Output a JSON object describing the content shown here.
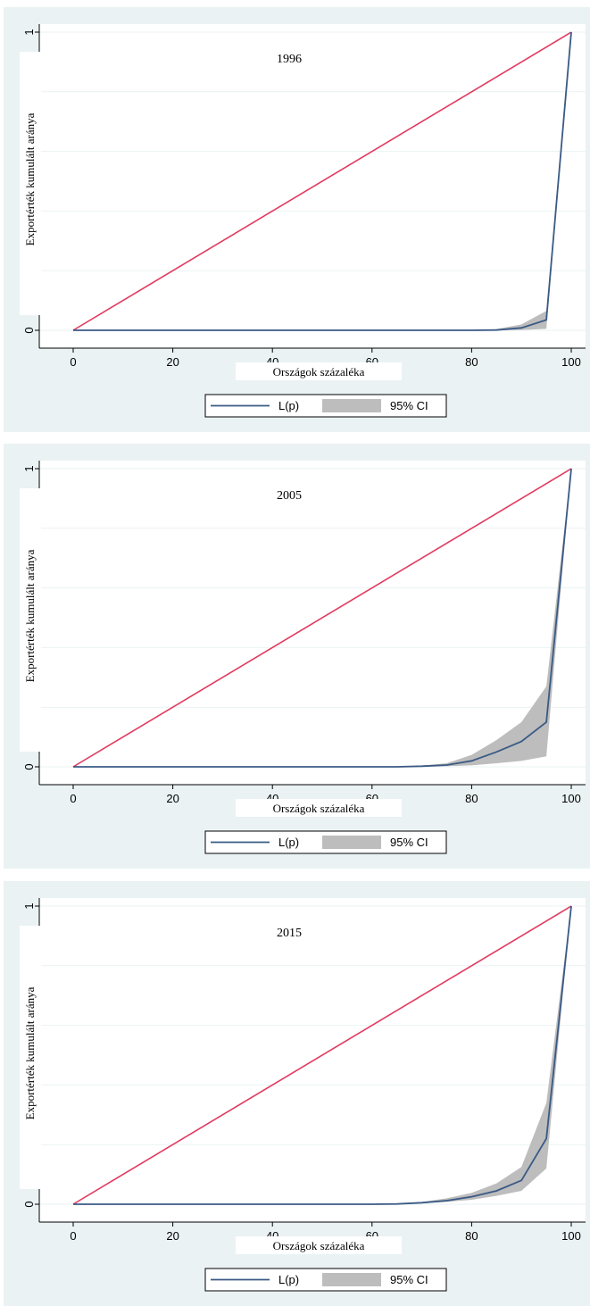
{
  "colors": {
    "panel_bg": "#eaf2f3",
    "plot_bg": "#ffffff",
    "grid": "#eaf2f3",
    "equality_line": "#e23a5f",
    "lorenz_line": "#3a5a85",
    "ci_band": "#bdbdbd",
    "axis": "#000000"
  },
  "legend": {
    "line_label": "L(p)",
    "band_label": "95% CI"
  },
  "chart_data": [
    {
      "type": "line",
      "title": "1996",
      "xlabel": "Országok százaléka",
      "ylabel": "Exportérték kumulált aránya",
      "xlim": [
        0,
        100
      ],
      "ylim": [
        0,
        1
      ],
      "xticks": [
        "0",
        "20",
        "40",
        "60",
        "80",
        "100"
      ],
      "yticks": [
        "0",
        ".2",
        ".4",
        ".6",
        ".8",
        "1"
      ],
      "grid": true,
      "legend_position": "bottom",
      "equality_line": {
        "x": [
          0,
          100
        ],
        "y": [
          0,
          1
        ]
      },
      "series": [
        {
          "name": "L(p)",
          "x": [
            0,
            5,
            10,
            15,
            20,
            25,
            30,
            35,
            40,
            45,
            50,
            55,
            60,
            65,
            70,
            75,
            80,
            85,
            90,
            95,
            100
          ],
          "y": [
            0,
            0,
            0,
            0,
            0,
            0,
            0,
            0,
            0,
            0,
            0,
            0,
            0,
            0,
            0,
            0,
            0,
            0.001,
            0.008,
            0.035,
            1
          ]
        },
        {
          "name": "95% CI",
          "x": [
            0,
            5,
            10,
            15,
            20,
            25,
            30,
            35,
            40,
            45,
            50,
            55,
            60,
            65,
            70,
            75,
            80,
            85,
            90,
            95,
            100
          ],
          "lower": [
            0,
            0,
            0,
            0,
            0,
            0,
            0,
            0,
            0,
            0,
            0,
            0,
            0,
            0,
            0,
            0,
            0,
            0,
            0.001,
            0.005,
            1
          ],
          "upper": [
            0,
            0,
            0,
            0,
            0,
            0,
            0,
            0,
            0,
            0,
            0,
            0,
            0,
            0,
            0,
            0,
            0,
            0.004,
            0.02,
            0.065,
            1
          ]
        }
      ]
    },
    {
      "type": "line",
      "title": "2005",
      "xlabel": "Országok százaléka",
      "ylabel": "Exportérték kumulált aránya",
      "xlim": [
        0,
        100
      ],
      "ylim": [
        0,
        1
      ],
      "xticks": [
        "0",
        "20",
        "40",
        "60",
        "80",
        "100"
      ],
      "yticks": [
        "0",
        ".2",
        ".4",
        ".6",
        ".8",
        "1"
      ],
      "grid": true,
      "legend_position": "bottom",
      "equality_line": {
        "x": [
          0,
          100
        ],
        "y": [
          0,
          1
        ]
      },
      "series": [
        {
          "name": "L(p)",
          "x": [
            0,
            5,
            10,
            15,
            20,
            25,
            30,
            35,
            40,
            45,
            50,
            55,
            60,
            65,
            70,
            75,
            80,
            85,
            90,
            95,
            100
          ],
          "y": [
            0,
            0,
            0,
            0,
            0,
            0,
            0,
            0,
            0,
            0,
            0,
            0,
            0,
            0,
            0.002,
            0.006,
            0.02,
            0.05,
            0.085,
            0.15,
            1
          ]
        },
        {
          "name": "95% CI",
          "x": [
            0,
            5,
            10,
            15,
            20,
            25,
            30,
            35,
            40,
            45,
            50,
            55,
            60,
            65,
            70,
            75,
            80,
            85,
            90,
            95,
            100
          ],
          "lower": [
            0,
            0,
            0,
            0,
            0,
            0,
            0,
            0,
            0,
            0,
            0,
            0,
            0,
            0,
            0,
            0.002,
            0.005,
            0.012,
            0.02,
            0.035,
            1
          ],
          "upper": [
            0,
            0,
            0,
            0,
            0,
            0,
            0,
            0,
            0,
            0,
            0,
            0,
            0,
            0,
            0.004,
            0.012,
            0.04,
            0.09,
            0.15,
            0.27,
            1
          ]
        }
      ]
    },
    {
      "type": "line",
      "title": "2015",
      "xlabel": "Országok százaléka",
      "ylabel": "Exportérték kumulált aránya",
      "xlim": [
        0,
        100
      ],
      "ylim": [
        0,
        1
      ],
      "xticks": [
        "0",
        "20",
        "40",
        "60",
        "80",
        "100"
      ],
      "yticks": [
        "0",
        ".2",
        ".4",
        ".6",
        ".8",
        "1"
      ],
      "grid": true,
      "legend_position": "bottom",
      "equality_line": {
        "x": [
          0,
          100
        ],
        "y": [
          0,
          1
        ]
      },
      "series": [
        {
          "name": "L(p)",
          "x": [
            0,
            5,
            10,
            15,
            20,
            25,
            30,
            35,
            40,
            45,
            50,
            55,
            60,
            65,
            70,
            75,
            80,
            85,
            90,
            95,
            100
          ],
          "y": [
            0,
            0,
            0,
            0,
            0,
            0,
            0,
            0,
            0,
            0,
            0,
            0,
            0,
            0.001,
            0.005,
            0.012,
            0.025,
            0.045,
            0.08,
            0.22,
            1
          ]
        },
        {
          "name": "95% CI",
          "x": [
            0,
            5,
            10,
            15,
            20,
            25,
            30,
            35,
            40,
            45,
            50,
            55,
            60,
            65,
            70,
            75,
            80,
            85,
            90,
            95,
            100
          ],
          "lower": [
            0,
            0,
            0,
            0,
            0,
            0,
            0,
            0,
            0,
            0,
            0,
            0,
            0,
            0,
            0.003,
            0.008,
            0.015,
            0.028,
            0.045,
            0.12,
            1
          ],
          "upper": [
            0,
            0,
            0,
            0,
            0,
            0,
            0,
            0,
            0,
            0,
            0,
            0,
            0,
            0.002,
            0.008,
            0.02,
            0.038,
            0.07,
            0.125,
            0.34,
            1
          ]
        }
      ]
    }
  ]
}
